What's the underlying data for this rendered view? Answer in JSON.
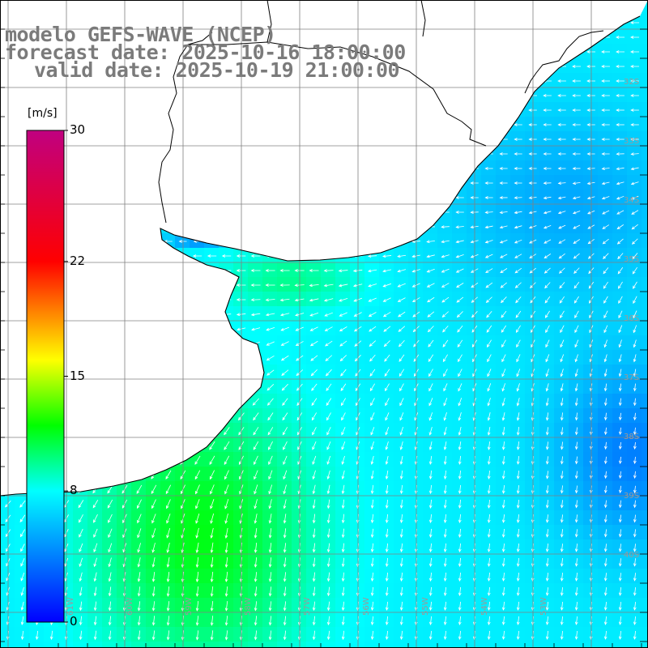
{
  "title": {
    "line1": "modelo GEFS-WAVE (NCEP)",
    "line2": "forecast date: 2025-10-16 18:00:00",
    "line3": "valid date: 2025-10-19 21:00:00"
  },
  "colorbar": {
    "unit": "[m/s]",
    "min": 0,
    "max": 30,
    "labels": [
      {
        "value": 30,
        "text": "30"
      },
      {
        "value": 22,
        "text": "22"
      },
      {
        "value": 15,
        "text": "15"
      },
      {
        "value": 8,
        "text": "8"
      },
      {
        "value": 0,
        "text": "0"
      }
    ],
    "stops": [
      "#0000ff",
      "#00ffff",
      "#00ff00",
      "#ffff00",
      "#ff0000",
      "#c00080"
    ]
  },
  "map": {
    "lon_range": [
      -64,
      -53
    ],
    "lat_range": [
      -41,
      -30
    ],
    "lat_labels": [
      "32S",
      "33S",
      "34S",
      "35S",
      "36S",
      "37S",
      "38S",
      "39S",
      "40S"
    ],
    "lon_labels": [
      "61W",
      "60W",
      "59W",
      "58W",
      "57W",
      "56W",
      "55W",
      "54W",
      "53W"
    ],
    "field": "wind speed and direction",
    "wind_direction_northeast": "from east (arrows pointing west)",
    "wind_direction_south": "from north (arrows pointing south)"
  }
}
